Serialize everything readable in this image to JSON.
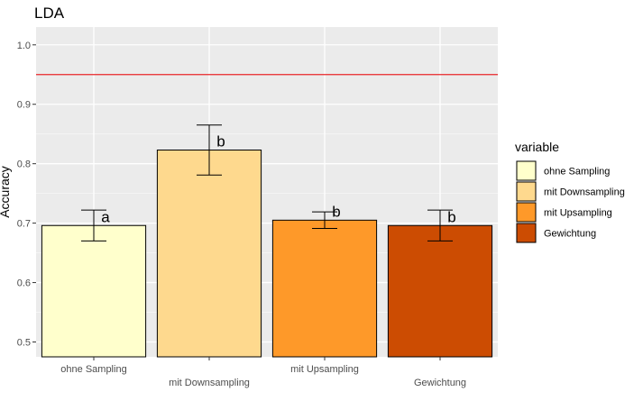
{
  "chart_data": {
    "type": "bar",
    "title": "LDA",
    "xlabel": "",
    "ylabel": "Accuracy",
    "ylim": [
      0.475,
      1.03
    ],
    "yticks": [
      0.5,
      0.6,
      0.7,
      0.8,
      0.9,
      1.0
    ],
    "ytick_labels": [
      "0.5",
      "0.6",
      "0.7",
      "0.8",
      "0.9",
      "1.0"
    ],
    "categories": [
      "ohne Sampling",
      "mit Downsampling",
      "mit Upsampling",
      "Gewichtung"
    ],
    "values": [
      0.696,
      0.823,
      0.705,
      0.696
    ],
    "errors_low": [
      0.67,
      0.781,
      0.691,
      0.67
    ],
    "errors_high": [
      0.722,
      0.865,
      0.719,
      0.722
    ],
    "letters": [
      "a",
      "b",
      "b",
      "b"
    ],
    "colors": [
      "#FFFFCC",
      "#FED98E",
      "#FE9929",
      "#CC4C02"
    ],
    "reference_line": {
      "y": 0.95,
      "color": "#E8262A"
    },
    "grid": true,
    "panel_color": "#EBEBEB",
    "legend": {
      "title": "variable",
      "placement": "right",
      "entries": [
        "ohne Sampling",
        "mit Downsampling",
        "mit Upsampling",
        "Gewichtung"
      ]
    }
  }
}
